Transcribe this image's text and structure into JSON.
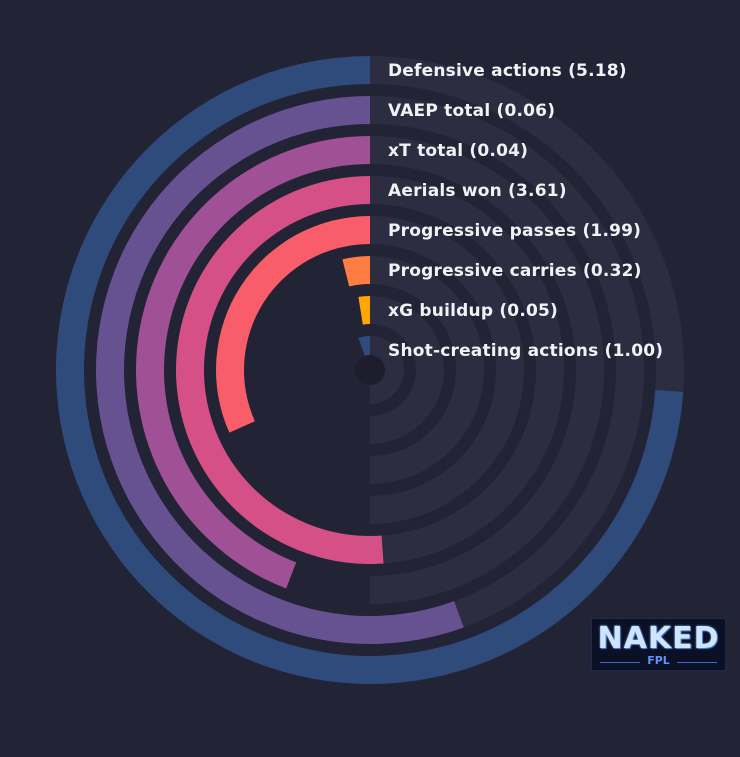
{
  "chart_data": {
    "type": "radial-bar",
    "categories": [
      "Defensive actions (5.18)",
      "VAEP total (0.06)",
      "xT total (0.04)",
      "Aerials won (3.61)",
      "Progressive passes (1.99)",
      "Progressive carries (0.32)",
      "xG buildup (0.05)",
      "Shot-creating actions (1.00)"
    ],
    "values": [
      5.18,
      0.06,
      0.04,
      3.61,
      1.99,
      0.32,
      0.05,
      1.0
    ],
    "angular_extent_deg": [
      266,
      200,
      159,
      184,
      114,
      14,
      9,
      20
    ],
    "colors": [
      "#2f4b7c",
      "#665191",
      "#a05195",
      "#d45087",
      "#f95d6a",
      "#ff7c43",
      "#ffa600",
      "#2f4b7c"
    ],
    "track_color": "#2d2d42",
    "background": "#232336",
    "grid": false,
    "legend": "none"
  },
  "logo": {
    "text": "NAKED",
    "subtext": "FPL"
  }
}
